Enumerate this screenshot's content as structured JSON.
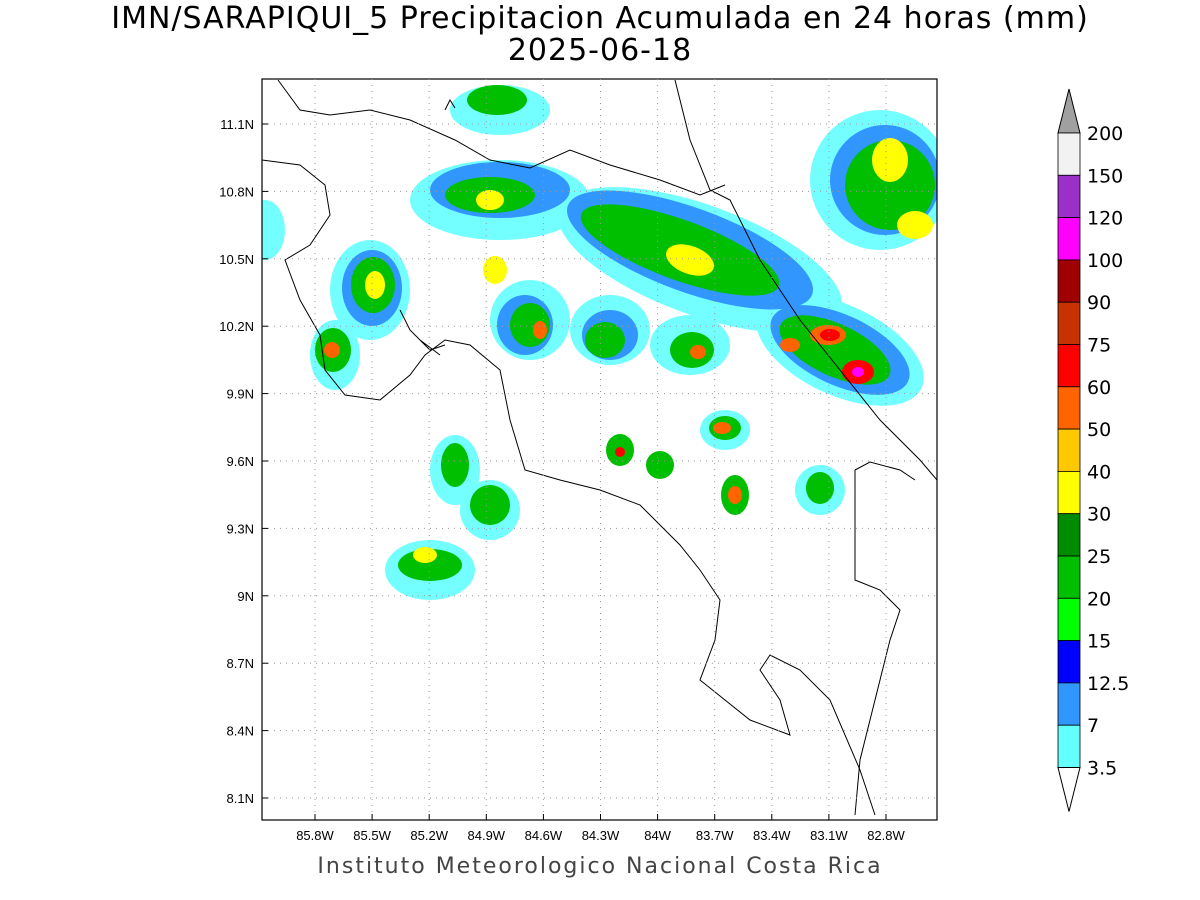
{
  "header": {
    "title_line1": "IMN/SARAPIQUI_5 Precipitacion Acumulada en 24 horas (mm)",
    "title_line2": "2025-06-18"
  },
  "footer": {
    "credit": "Instituto Meteorologico Nacional Costa Rica"
  },
  "map": {
    "lon_ticks": [
      "85.8W",
      "85.5W",
      "85.2W",
      "84.9W",
      "84.6W",
      "84.3W",
      "84W",
      "83.7W",
      "83.4W",
      "83.1W",
      "82.8W"
    ],
    "lat_ticks": [
      "11.1N",
      "10.8N",
      "10.5N",
      "10.2N",
      "9.9N",
      "9.6N",
      "9.3N",
      "9N",
      "8.7N",
      "8.4N",
      "8.1N"
    ],
    "lon_values": [
      -85.8,
      -85.5,
      -85.2,
      -84.9,
      -84.6,
      -84.3,
      -84.0,
      -83.7,
      -83.4,
      -83.1,
      -82.8
    ],
    "lat_values": [
      11.1,
      10.8,
      10.5,
      10.2,
      9.9,
      9.6,
      9.3,
      9.0,
      8.7,
      8.4,
      8.1
    ],
    "grid": "dotted"
  },
  "legend": {
    "labels": [
      "200",
      "150",
      "120",
      "100",
      "90",
      "75",
      "60",
      "50",
      "40",
      "30",
      "25",
      "20",
      "15",
      "12.5",
      "7",
      "3.5"
    ],
    "colors": [
      "#f2f2f2",
      "#9b30c8",
      "#ff00ff",
      "#a00000",
      "#c83200",
      "#ff0000",
      "#ff6400",
      "#ffc800",
      "#ffff00",
      "#008c00",
      "#00be00",
      "#00ff00",
      "#0000ff",
      "#3296ff",
      "#64ffff"
    ],
    "top_arrow_color": "#a0a0a0",
    "bottom_arrow_color": "#ffffff"
  }
}
